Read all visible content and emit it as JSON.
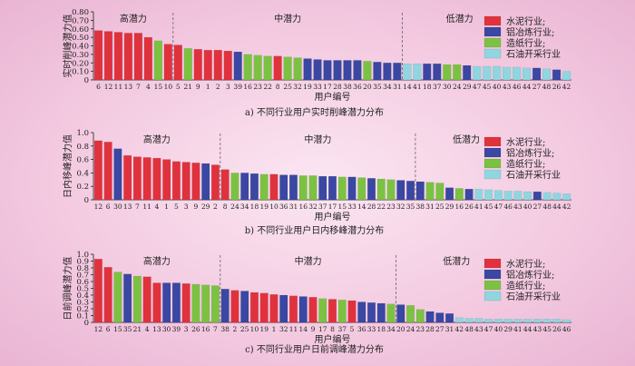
{
  "legend_colors": {
    "cement": "#e0323d",
    "aluminum": "#3a47a3",
    "paper": "#7cc242",
    "oil": "#8fd6e0"
  },
  "chart_data": [
    {
      "type": "bar",
      "title": "a) 不同行业用户实时削峰潜力分布",
      "ylabel": "实时削峰潜力值",
      "xlabel": "用户编号",
      "ylim": [
        0,
        0.8
      ],
      "yticks": [
        "0",
        "0.10",
        "0.20",
        "0.30",
        "0.40",
        "0.50",
        "0.60",
        "0.70",
        "0.80"
      ],
      "regions": [
        "高潜力",
        "中潜力",
        "低潜力"
      ],
      "region_splits": [
        8,
        31
      ],
      "legend": [
        "水泥行业;",
        "铝冶炼行业;",
        "造纸行业;",
        "石油开采行业"
      ],
      "categories": [
        "6",
        "12",
        "11",
        "13",
        "7",
        "4",
        "15",
        "10",
        "5",
        "21",
        "9",
        "1",
        "2",
        "3",
        "39",
        "16",
        "23",
        "22",
        "8",
        "25",
        "32",
        "19",
        "33",
        "17",
        "28",
        "38",
        "36",
        "20",
        "35",
        "34",
        "31",
        "14",
        "41",
        "18",
        "37",
        "30",
        "24",
        "29",
        "47",
        "45",
        "40",
        "43",
        "46",
        "44",
        "27",
        "48",
        "26",
        "42"
      ],
      "industries": [
        "cement",
        "cement",
        "cement",
        "cement",
        "cement",
        "cement",
        "paper",
        "cement",
        "cement",
        "paper",
        "cement",
        "cement",
        "cement",
        "cement",
        "aluminum",
        "paper",
        "paper",
        "paper",
        "cement",
        "paper",
        "paper",
        "aluminum",
        "aluminum",
        "aluminum",
        "aluminum",
        "aluminum",
        "aluminum",
        "paper",
        "aluminum",
        "aluminum",
        "aluminum",
        "oil",
        "oil",
        "aluminum",
        "aluminum",
        "paper",
        "paper",
        "aluminum",
        "oil",
        "oil",
        "oil",
        "oil",
        "oil",
        "oil",
        "aluminum",
        "oil",
        "aluminum",
        "oil"
      ],
      "values": [
        0.58,
        0.57,
        0.56,
        0.55,
        0.55,
        0.5,
        0.46,
        0.42,
        0.41,
        0.37,
        0.36,
        0.35,
        0.35,
        0.34,
        0.33,
        0.3,
        0.29,
        0.28,
        0.28,
        0.27,
        0.26,
        0.25,
        0.24,
        0.23,
        0.23,
        0.23,
        0.23,
        0.22,
        0.21,
        0.2,
        0.2,
        0.19,
        0.19,
        0.19,
        0.19,
        0.18,
        0.18,
        0.17,
        0.16,
        0.16,
        0.16,
        0.15,
        0.15,
        0.14,
        0.14,
        0.13,
        0.12,
        0.1
      ]
    },
    {
      "type": "bar",
      "title": "b) 不同行业用户日内移峰潜力分布",
      "ylabel": "日内移峰潜力值",
      "xlabel": "用户编号",
      "ylim": [
        0,
        1.0
      ],
      "yticks": [
        "0",
        "0.2",
        "0.4",
        "0.6",
        "0.8",
        "1.0"
      ],
      "regions": [
        "高潜力",
        "中潜力",
        "低潜力"
      ],
      "region_splits": [
        13,
        33
      ],
      "legend": [
        "水泥行业;",
        "铝冶炼行业;",
        "造纸行业;",
        "石油开采行业"
      ],
      "categories": [
        "12",
        "6",
        "30",
        "13",
        "7",
        "11",
        "4",
        "1",
        "5",
        "3",
        "9",
        "29",
        "2",
        "8",
        "24",
        "34",
        "18",
        "19",
        "10",
        "36",
        "31",
        "16",
        "32",
        "37",
        "17",
        "15",
        "33",
        "14",
        "28",
        "22",
        "23",
        "32",
        "35",
        "38",
        "31",
        "25",
        "29",
        "16",
        "26",
        "41",
        "45",
        "47",
        "46",
        "43",
        "40",
        "27",
        "48",
        "44",
        "42"
      ],
      "industries": [
        "cement",
        "cement",
        "aluminum",
        "cement",
        "cement",
        "cement",
        "cement",
        "cement",
        "cement",
        "cement",
        "cement",
        "aluminum",
        "cement",
        "cement",
        "paper",
        "aluminum",
        "aluminum",
        "paper",
        "cement",
        "aluminum",
        "aluminum",
        "paper",
        "paper",
        "aluminum",
        "aluminum",
        "paper",
        "aluminum",
        "paper",
        "aluminum",
        "paper",
        "paper",
        "aluminum",
        "aluminum",
        "aluminum",
        "paper",
        "paper",
        "aluminum",
        "paper",
        "aluminum",
        "oil",
        "oil",
        "oil",
        "oil",
        "oil",
        "oil",
        "aluminum",
        "oil",
        "oil",
        "oil"
      ],
      "values": [
        0.88,
        0.86,
        0.76,
        0.66,
        0.64,
        0.63,
        0.62,
        0.6,
        0.57,
        0.56,
        0.55,
        0.54,
        0.52,
        0.45,
        0.4,
        0.4,
        0.39,
        0.38,
        0.38,
        0.37,
        0.37,
        0.36,
        0.36,
        0.35,
        0.35,
        0.34,
        0.34,
        0.33,
        0.32,
        0.31,
        0.3,
        0.29,
        0.28,
        0.27,
        0.26,
        0.25,
        0.18,
        0.17,
        0.16,
        0.16,
        0.15,
        0.14,
        0.13,
        0.13,
        0.12,
        0.12,
        0.11,
        0.1,
        0.09
      ]
    },
    {
      "type": "bar",
      "title": "c) 不同行业用户日前调峰潜力分布",
      "ylabel": "日前调峰潜力值",
      "xlabel": "用户编号",
      "ylim": [
        0,
        1.0
      ],
      "yticks": [
        "0",
        "0.1",
        "0.2",
        "0.3",
        "0.4",
        "0.5",
        "0.6",
        "0.7",
        "0.8",
        "0.9",
        "1.0"
      ],
      "regions": [
        "高潜力",
        "中潜力",
        "低潜力"
      ],
      "region_splits": [
        13,
        31
      ],
      "legend": [
        "水泥行业;",
        "铝冶炼行业;",
        "造纸行业;",
        "石油开采行业"
      ],
      "categories": [
        "12",
        "6",
        "15",
        "35",
        "21",
        "4",
        "13",
        "30",
        "39",
        "3",
        "26",
        "16",
        "7",
        "38",
        "2",
        "25",
        "10",
        "19",
        "1",
        "32",
        "11",
        "14",
        "9",
        "17",
        "8",
        "37",
        "5",
        "36",
        "33",
        "18",
        "34",
        "20",
        "24",
        "23",
        "28",
        "27",
        "31",
        "42",
        "48",
        "43",
        "47",
        "40",
        "29",
        "41",
        "44",
        "43",
        "45",
        "26",
        "46"
      ],
      "industries": [
        "cement",
        "cement",
        "paper",
        "aluminum",
        "paper",
        "cement",
        "cement",
        "aluminum",
        "aluminum",
        "cement",
        "paper",
        "paper",
        "paper",
        "aluminum",
        "cement",
        "aluminum",
        "cement",
        "cement",
        "cement",
        "aluminum",
        "cement",
        "aluminum",
        "cement",
        "paper",
        "cement",
        "paper",
        "cement",
        "aluminum",
        "aluminum",
        "aluminum",
        "paper",
        "aluminum",
        "paper",
        "paper",
        "aluminum",
        "aluminum",
        "aluminum",
        "oil",
        "oil",
        "oil",
        "oil",
        "oil",
        "oil",
        "oil",
        "oil",
        "oil",
        "oil",
        "oil",
        "oil"
      ],
      "values": [
        0.93,
        0.81,
        0.74,
        0.71,
        0.68,
        0.67,
        0.58,
        0.58,
        0.58,
        0.57,
        0.56,
        0.55,
        0.54,
        0.49,
        0.47,
        0.46,
        0.44,
        0.43,
        0.41,
        0.4,
        0.39,
        0.38,
        0.37,
        0.35,
        0.34,
        0.33,
        0.32,
        0.3,
        0.29,
        0.28,
        0.27,
        0.26,
        0.25,
        0.19,
        0.16,
        0.14,
        0.13,
        0.07,
        0.06,
        0.06,
        0.05,
        0.05,
        0.05,
        0.05,
        0.05,
        0.05,
        0.05,
        0.05,
        0.04
      ]
    }
  ]
}
